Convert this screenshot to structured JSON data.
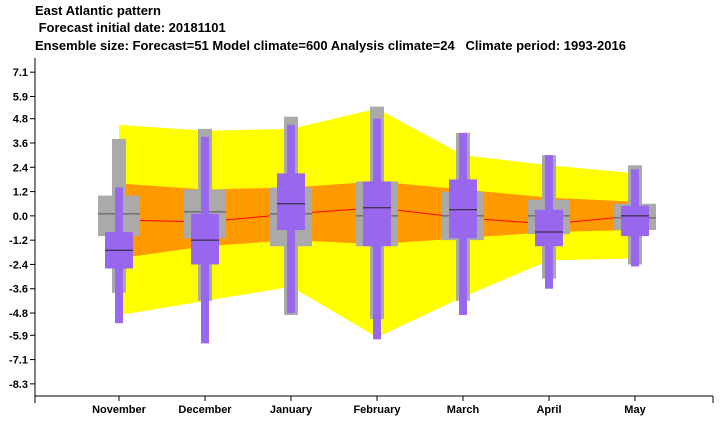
{
  "header": {
    "line1": "East Atlantic pattern",
    "line2": " Forecast initial date: 20181101",
    "line3": "Ensemble size: Forecast=51 Model climate=600 Analysis climate=24   Climate period: 1993-2016"
  },
  "chart_data": {
    "type": "box",
    "title": "East Atlantic pattern",
    "categories": [
      "November",
      "December",
      "January",
      "February",
      "March",
      "April",
      "May"
    ],
    "y_ticks": [
      7.1,
      5.9,
      4.8,
      3.6,
      2.4,
      1.2,
      0.0,
      -1.2,
      -2.4,
      -3.6,
      -4.8,
      -5.9,
      -7.1,
      -8.3
    ],
    "y_tick_labels": [
      "7.1",
      "5.9",
      "4.8",
      "3.6",
      "2.4",
      "1.2",
      "0.0",
      "-1.2",
      "-2.4",
      "-3.6",
      "-4.8",
      "-5.9",
      "-7.1",
      "-8.3"
    ],
    "ylim": [
      -8.9,
      7.8
    ],
    "grid": false,
    "model_climate": {
      "color_whisker": "#ffff00",
      "color_box": "#ff9900",
      "color_median": "#ff0000",
      "median": [
        -0.2,
        -0.3,
        0.1,
        0.4,
        -0.1,
        -0.4,
        0.0
      ],
      "q25": [
        -2.1,
        -1.5,
        -1.2,
        -1.4,
        -1.1,
        -0.8,
        -0.7
      ],
      "q75": [
        1.6,
        1.3,
        1.4,
        1.7,
        1.3,
        0.9,
        0.7
      ],
      "min": [
        -4.9,
        -4.2,
        -3.5,
        -6.0,
        -4.0,
        -2.2,
        -2.1
      ],
      "max": [
        4.5,
        4.2,
        4.3,
        5.3,
        3.0,
        2.5,
        2.1
      ]
    },
    "analysis_climate": {
      "color_whisker": "#aaaaaa",
      "color_box": "#aaaaaa",
      "color_median": "#555555",
      "median": [
        0.1,
        0.2,
        0.1,
        0.0,
        0.0,
        0.0,
        -0.1
      ],
      "q25": [
        -1.0,
        -1.1,
        -1.5,
        -1.5,
        -1.2,
        -0.9,
        -0.7
      ],
      "q75": [
        1.0,
        1.3,
        1.4,
        1.7,
        1.2,
        0.8,
        0.6
      ],
      "min": [
        -3.8,
        -4.2,
        -4.9,
        -5.1,
        -4.2,
        -3.1,
        -2.4
      ],
      "max": [
        3.8,
        4.3,
        4.9,
        5.4,
        4.1,
        3.0,
        2.5
      ]
    },
    "forecast": {
      "color": "#9966ee",
      "color_median": "#222222",
      "median": [
        -1.7,
        -1.2,
        0.6,
        0.4,
        0.3,
        -0.8,
        0.0
      ],
      "q25": [
        -2.6,
        -2.4,
        -0.7,
        -1.5,
        -1.1,
        -1.5,
        -1.0
      ],
      "q75": [
        -0.8,
        0.1,
        2.1,
        1.7,
        1.8,
        0.3,
        0.5
      ],
      "min": [
        -5.3,
        -6.3,
        -4.8,
        -6.1,
        -4.9,
        -3.6,
        -2.5
      ],
      "max": [
        1.4,
        3.9,
        4.5,
        4.8,
        4.1,
        3.0,
        2.3
      ]
    }
  }
}
